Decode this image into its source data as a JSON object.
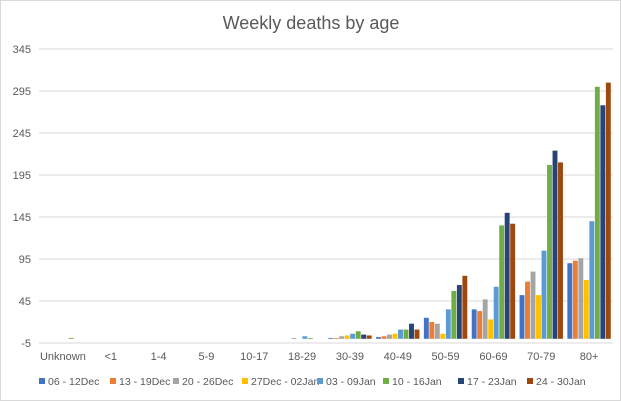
{
  "chart_data": {
    "type": "bar",
    "title": "Weekly deaths by age",
    "xlabel": "",
    "ylabel": "",
    "ylim": [
      -5,
      345
    ],
    "yticks": [
      -5,
      45,
      95,
      145,
      195,
      245,
      295,
      345
    ],
    "grid": true,
    "legend_position": "bottom",
    "categories": [
      "Unknown",
      "<1",
      "1-4",
      "5-9",
      "10-17",
      "18-29",
      "30-39",
      "40-49",
      "50-59",
      "60-69",
      "70-79",
      "80+"
    ],
    "series": [
      {
        "name": "06 - 12Dec",
        "color": "#4472C4",
        "values": [
          0,
          0,
          0,
          0,
          0,
          0,
          1,
          2,
          25,
          35,
          52,
          90
        ]
      },
      {
        "name": "13 - 19Dec",
        "color": "#ED7D31",
        "values": [
          0,
          0,
          0,
          0,
          0,
          0,
          1,
          3,
          20,
          33,
          68,
          93
        ]
      },
      {
        "name": "20 - 26Dec",
        "color": "#A5A5A5",
        "values": [
          0,
          0,
          0,
          0,
          0,
          1,
          3,
          5,
          18,
          47,
          80,
          96
        ]
      },
      {
        "name": "27Dec - 02Jan",
        "color": "#FFC000",
        "values": [
          0,
          0,
          0,
          0,
          0,
          0,
          4,
          6,
          6,
          23,
          52,
          70
        ]
      },
      {
        "name": "03 - 09Jan",
        "color": "#5B9BD5",
        "values": [
          0,
          0,
          0,
          0,
          0,
          3,
          6,
          11,
          35,
          62,
          105,
          140
        ]
      },
      {
        "name": "10 - 16Jan",
        "color": "#70AD47",
        "values": [
          1,
          0,
          0,
          0,
          0,
          1,
          9,
          11,
          57,
          135,
          207,
          300
        ]
      },
      {
        "name": "17 - 23Jan",
        "color": "#264478",
        "values": [
          0,
          0,
          0,
          0,
          0,
          0,
          5,
          18,
          64,
          150,
          224,
          278
        ]
      },
      {
        "name": "24 - 30Jan",
        "color": "#9E480E",
        "values": [
          0,
          0,
          0,
          0,
          0,
          0,
          4,
          11,
          75,
          137,
          210,
          305
        ]
      }
    ]
  }
}
